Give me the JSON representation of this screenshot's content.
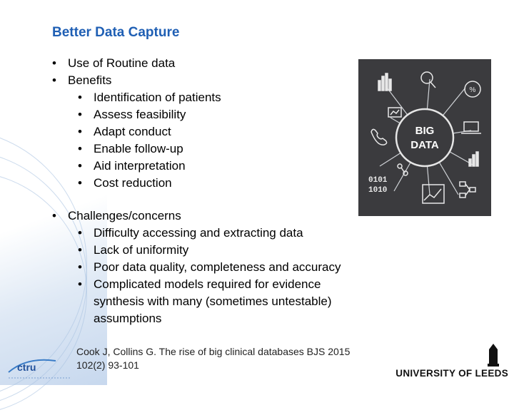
{
  "slide": {
    "title": "Better Data Capture",
    "sections": [
      {
        "label": "Use of Routine data",
        "items": []
      },
      {
        "label": "Benefits",
        "items": [
          "Identification of patients",
          "Assess feasibility",
          "Adapt conduct",
          "Enable follow-up",
          "Aid interpretation",
          "Cost reduction"
        ]
      },
      {
        "label": "Challenges/concerns",
        "items": [
          "Difficulty accessing and extracting data",
          "Lack of uniformity",
          "Poor data quality, completeness and accuracy"
        ],
        "long_item": {
          "line1": "Complicated models required for evidence",
          "line2": "synthesis with many (sometimes untestable)",
          "line3": "assumptions"
        }
      }
    ],
    "reference": {
      "line1": "Cook J, Collins G. The rise of big clinical databases BJS 2015",
      "line2": "102(2) 93-101"
    }
  },
  "image": {
    "big_data_line1": "BIG",
    "big_data_line2": "DATA"
  },
  "logos": {
    "ctru": "ctru",
    "university": "UNIVERSITY OF LEEDS"
  },
  "colors": {
    "title": "#1f5fb4",
    "image_bg": "#3b3b3e"
  }
}
